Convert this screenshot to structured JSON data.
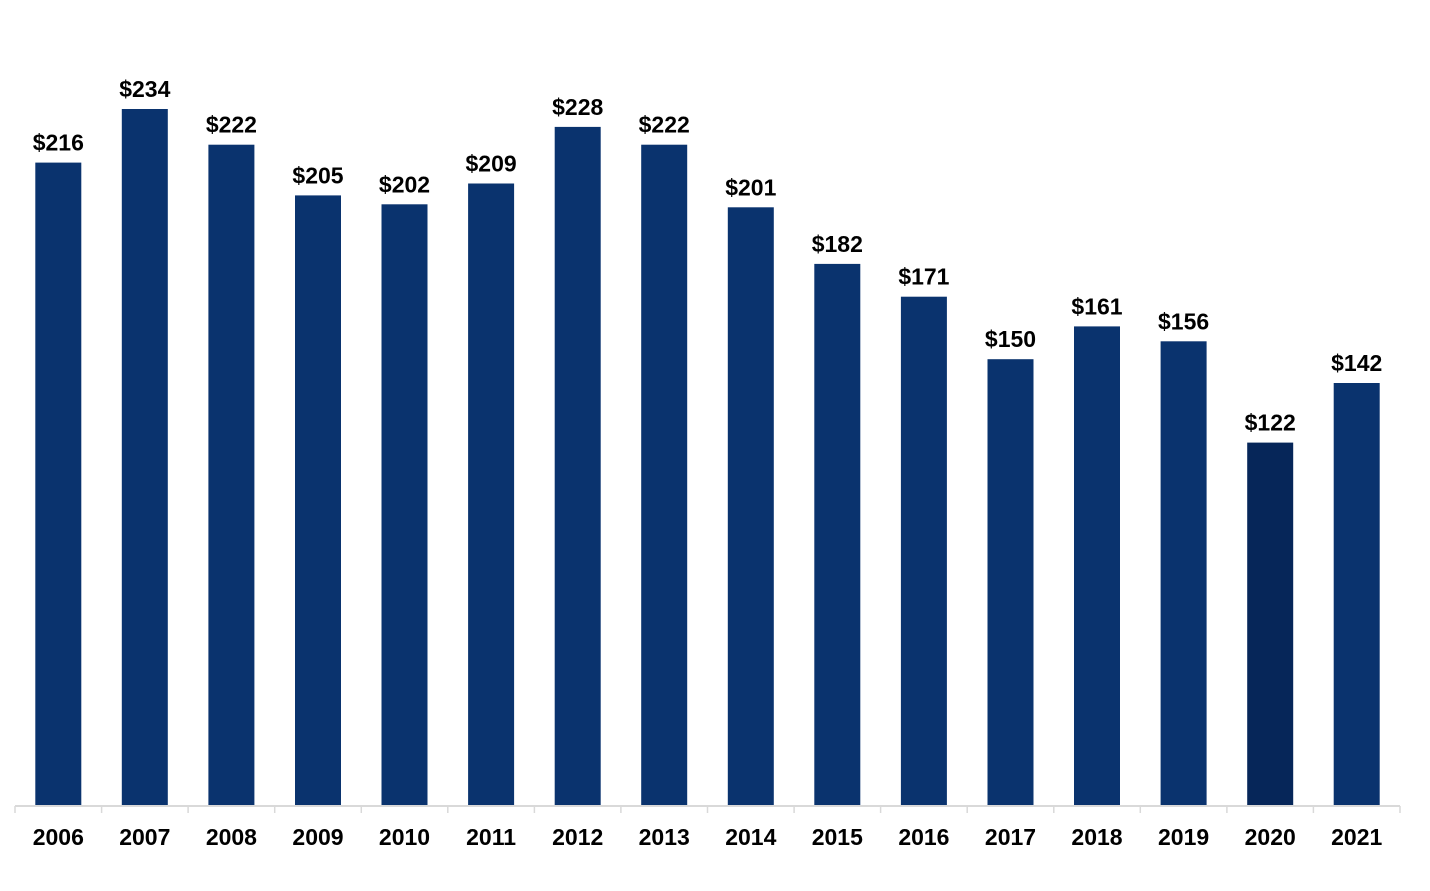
{
  "chart_data": {
    "type": "bar",
    "title": "",
    "xlabel": "",
    "ylabel": "",
    "categories": [
      "2006",
      "2007",
      "2008",
      "2009",
      "2010",
      "2011",
      "2012",
      "2013",
      "2014",
      "2015",
      "2016",
      "2017",
      "2018",
      "2019",
      "2020",
      "2021"
    ],
    "values": [
      216,
      234,
      222,
      205,
      202,
      209,
      228,
      222,
      201,
      182,
      171,
      150,
      161,
      156,
      122,
      142
    ],
    "value_labels": [
      "$216",
      "$234",
      "$222",
      "$205",
      "$202",
      "$209",
      "$228",
      "$222",
      "$201",
      "$182",
      "$171",
      "$150",
      "$161",
      "$156",
      "$122",
      "$142"
    ],
    "ylim": [
      0,
      234
    ],
    "grid": false,
    "legend": "none",
    "colors": {
      "bar": "#0a336e",
      "highlight_bar": "#062659",
      "axis": "#d9d9d9"
    },
    "highlight_category": "2020"
  }
}
